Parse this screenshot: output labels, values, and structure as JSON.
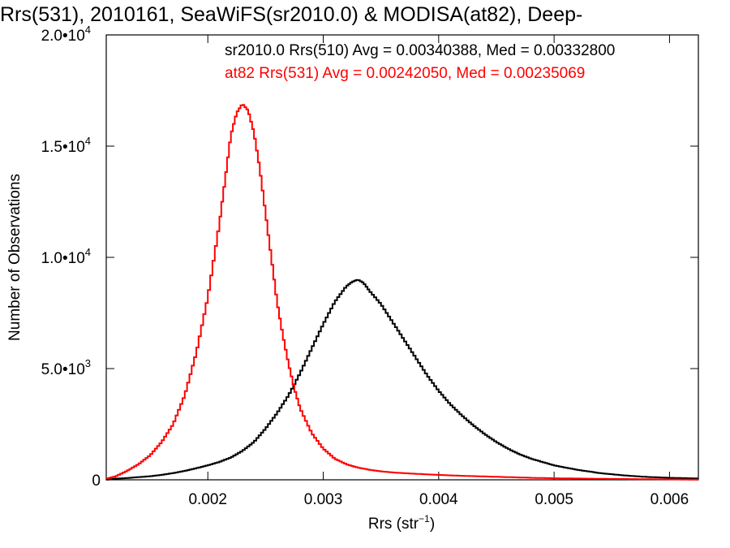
{
  "chart_data": {
    "type": "line",
    "title": "Rrs(531), 2010161, SeaWiFS(sr2010.0) & MODISA(at82), Deep-",
    "xlabel": "Rrs (str",
    "xlabel_sup": "−1",
    "xlabel_end": ")",
    "ylabel": "Number of Observations",
    "xlim": [
      0.00112,
      0.00625
    ],
    "ylim": [
      0,
      20000
    ],
    "x_ticks": [
      {
        "value": 0.002,
        "label": "0.002"
      },
      {
        "value": 0.003,
        "label": "0.003"
      },
      {
        "value": 0.004,
        "label": "0.004"
      },
      {
        "value": 0.005,
        "label": "0.005"
      },
      {
        "value": 0.006,
        "label": "0.006"
      }
    ],
    "y_ticks": [
      {
        "value": 0,
        "mant": "0",
        "exp": ""
      },
      {
        "value": 5000,
        "mant": "5.0•10",
        "exp": "3"
      },
      {
        "value": 10000,
        "mant": "1.0•10",
        "exp": "4"
      },
      {
        "value": 15000,
        "mant": "1.5•10",
        "exp": "4"
      },
      {
        "value": 20000,
        "mant": "2.0•10",
        "exp": "4"
      }
    ],
    "legend_position": "top-right",
    "series": [
      {
        "name": "sr2010.0 Rrs(510) Avg = 0.00340388, Med = 0.00332800",
        "color": "#000000",
        "x": [
          0.00112,
          0.0012,
          0.0013,
          0.0014,
          0.0015,
          0.0016,
          0.0017,
          0.0018,
          0.0019,
          0.002,
          0.0021,
          0.0022,
          0.0023,
          0.0024,
          0.0025,
          0.0026,
          0.0027,
          0.0028,
          0.0029,
          0.003,
          0.0031,
          0.0032,
          0.00325,
          0.0033,
          0.00335,
          0.0034,
          0.0035,
          0.0036,
          0.0037,
          0.0038,
          0.0039,
          0.004,
          0.0041,
          0.0042,
          0.0043,
          0.0044,
          0.0045,
          0.0046,
          0.0047,
          0.0048,
          0.0049,
          0.005,
          0.0052,
          0.0054,
          0.0056,
          0.0058,
          0.006,
          0.00625
        ],
        "y": [
          0,
          50,
          80,
          120,
          160,
          220,
          300,
          400,
          520,
          650,
          800,
          1000,
          1300,
          1700,
          2300,
          3000,
          3800,
          4800,
          5900,
          7000,
          8000,
          8700,
          8900,
          9000,
          8850,
          8500,
          7900,
          7100,
          6300,
          5500,
          4700,
          4000,
          3400,
          2900,
          2450,
          2050,
          1700,
          1400,
          1150,
          950,
          800,
          650,
          450,
          300,
          200,
          130,
          90,
          60
        ]
      },
      {
        "name": "at82 Rrs(531) Avg = 0.00242050, Med = 0.00235069",
        "color": "#ff0000",
        "x": [
          0.00112,
          0.0012,
          0.0013,
          0.0014,
          0.0015,
          0.0016,
          0.0017,
          0.0018,
          0.0019,
          0.002,
          0.0021,
          0.00215,
          0.0022,
          0.00225,
          0.0023,
          0.00235,
          0.0024,
          0.00245,
          0.0025,
          0.00255,
          0.0026,
          0.00265,
          0.0027,
          0.00275,
          0.0028,
          0.0029,
          0.003,
          0.0031,
          0.0032,
          0.0033,
          0.0034,
          0.0035,
          0.0036,
          0.0038,
          0.004,
          0.0042,
          0.0044,
          0.0046,
          0.0048,
          0.005,
          0.0055,
          0.006,
          0.00625
        ],
        "y": [
          50,
          150,
          400,
          700,
          1100,
          1700,
          2500,
          3800,
          5700,
          8200,
          11500,
          13500,
          15500,
          16500,
          16900,
          16600,
          15600,
          14000,
          12000,
          10000,
          8000,
          6500,
          5200,
          4100,
          3200,
          2100,
          1400,
          950,
          700,
          550,
          450,
          380,
          330,
          270,
          220,
          180,
          150,
          120,
          90,
          70,
          40,
          20,
          10
        ]
      }
    ]
  }
}
